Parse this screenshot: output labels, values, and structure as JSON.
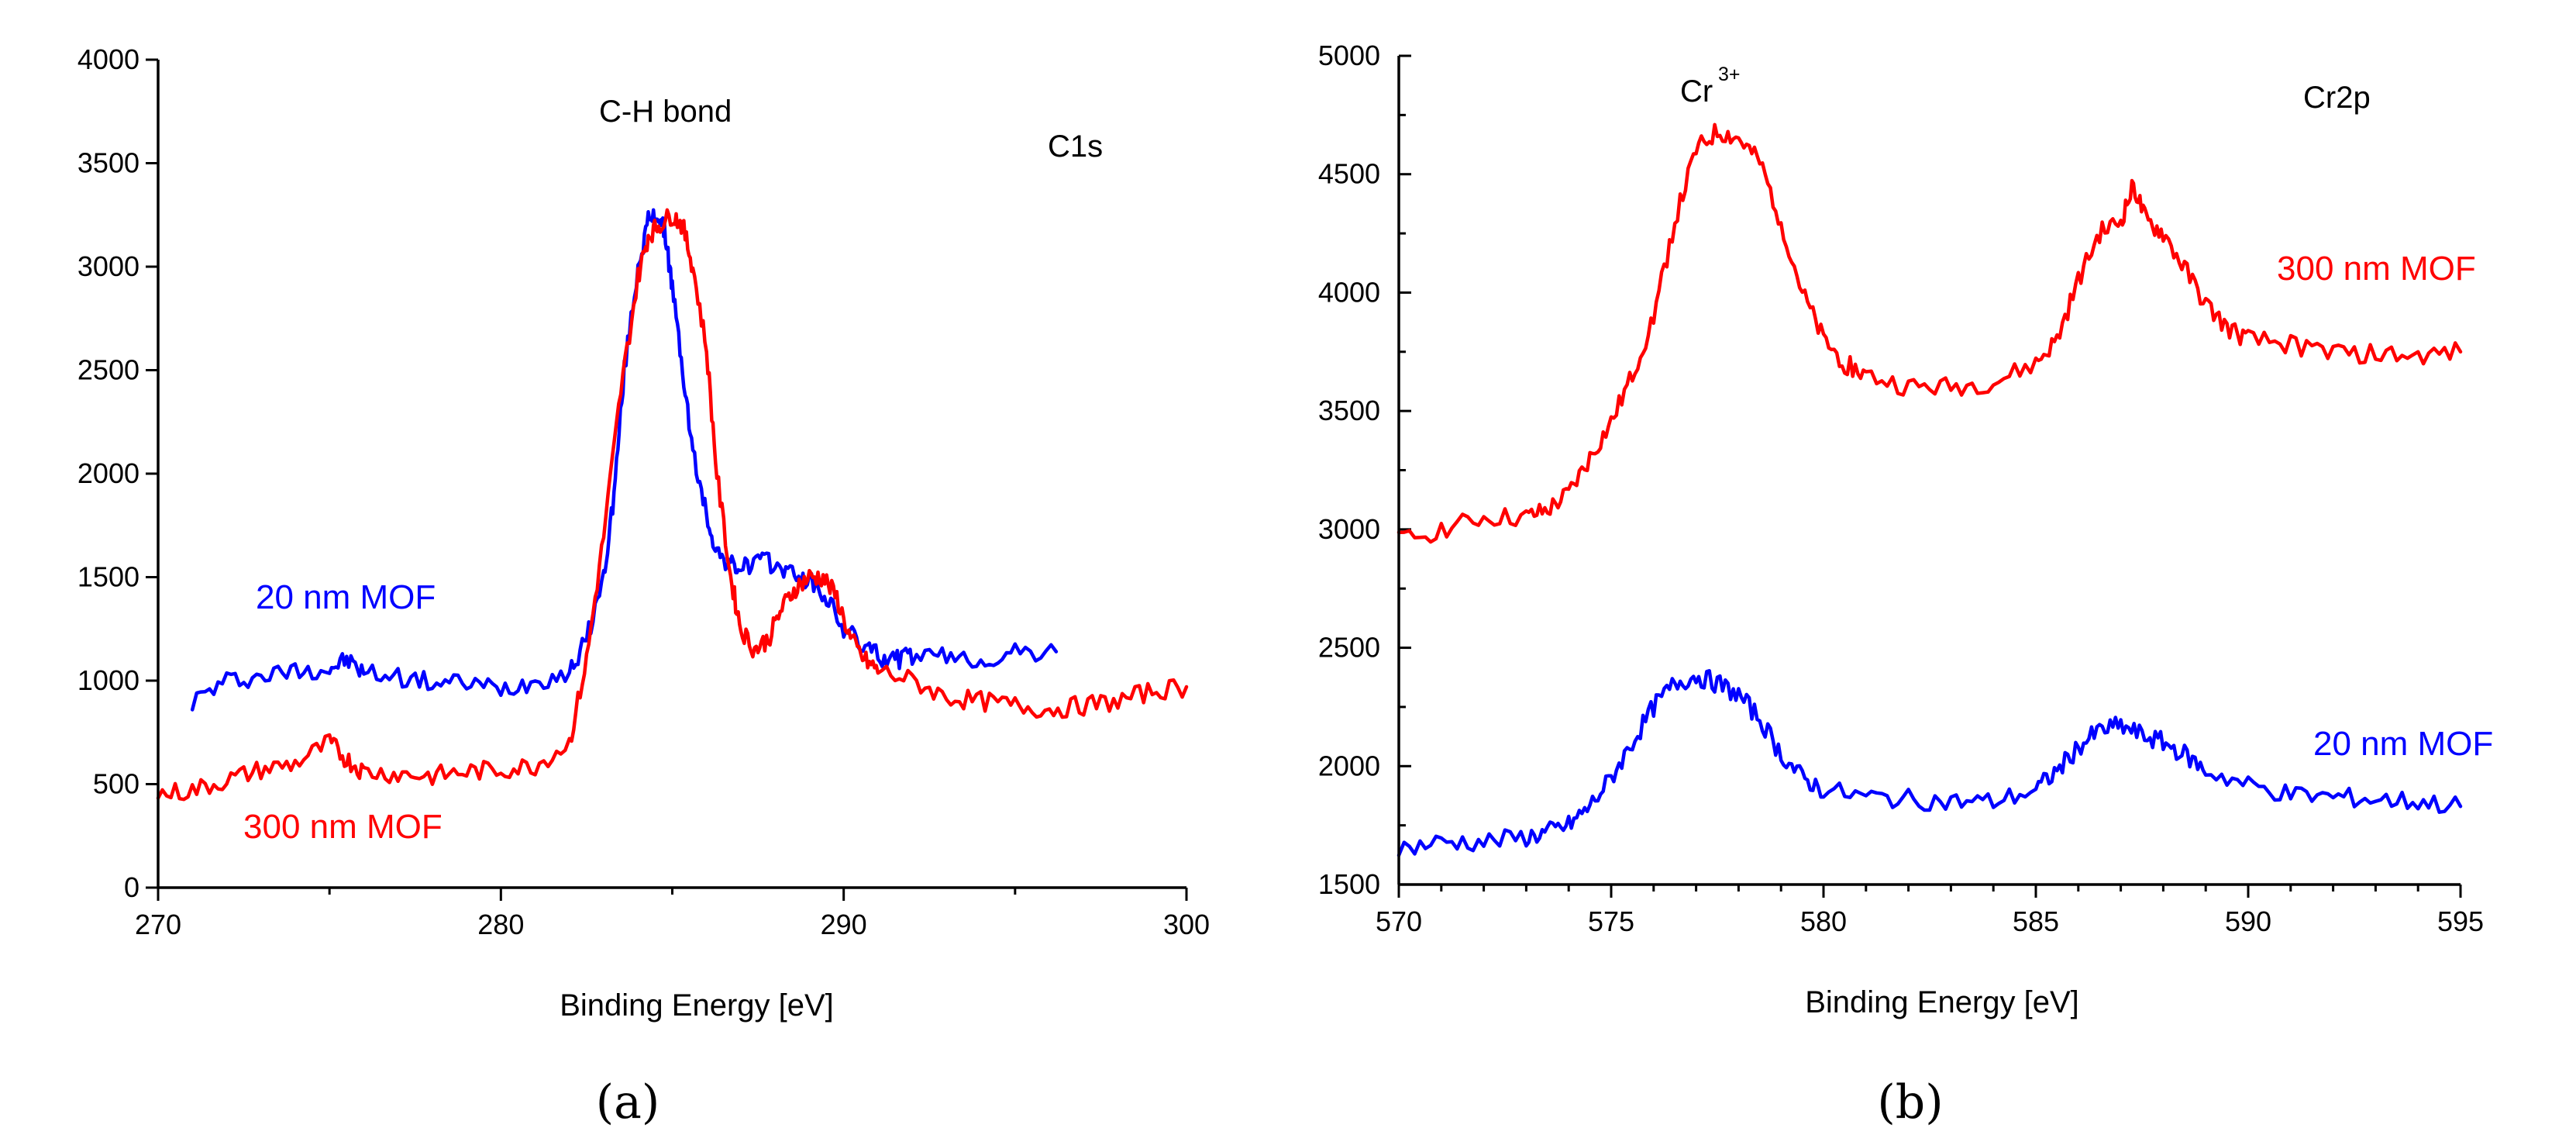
{
  "chart_data": [
    {
      "panel": "a",
      "type": "line",
      "title": "",
      "xlabel": "Binding Energy [eV]",
      "ylabel": "",
      "xlim": [
        270,
        300
      ],
      "ylim": [
        0,
        4000
      ],
      "xticks": [
        270,
        280,
        290,
        300
      ],
      "yticks": [
        0,
        500,
        1000,
        1500,
        2000,
        2500,
        3000,
        3500,
        4000
      ],
      "grid": false,
      "annotations": {
        "peak_label": "C-H bond",
        "region_label": "C1s"
      },
      "series": [
        {
          "name": "20 nm MOF",
          "color": "#0000ff",
          "x": [
            271,
            272,
            273,
            274,
            275,
            275.5,
            276,
            277,
            278,
            279,
            280,
            281,
            282,
            282.5,
            283,
            283.3,
            283.6,
            284,
            284.3,
            284.6,
            284.8,
            285,
            285.3,
            285.6,
            286,
            286.3,
            286.7,
            287,
            287.5,
            288,
            288.5,
            289,
            289.5,
            290,
            290.5,
            291,
            291.5,
            292,
            293,
            294,
            295,
            296.2
          ],
          "values": [
            900,
            1000,
            1020,
            1050,
            1060,
            1100,
            1040,
            1020,
            990,
            990,
            960,
            1000,
            1040,
            1200,
            1500,
            1900,
            2500,
            3000,
            3220,
            3250,
            3150,
            2900,
            2500,
            2100,
            1800,
            1620,
            1560,
            1540,
            1580,
            1560,
            1520,
            1480,
            1400,
            1250,
            1180,
            1120,
            1100,
            1120,
            1110,
            1100,
            1130,
            1140
          ]
        },
        {
          "name": "300 nm MOF",
          "color": "#ff0000",
          "x": [
            270,
            271,
            272,
            273,
            274,
            275,
            275.5,
            276,
            277,
            278,
            279,
            280,
            281,
            282,
            282.5,
            283,
            283.5,
            284,
            284.3,
            284.6,
            285,
            285.3,
            285.6,
            286,
            286.3,
            286.7,
            287,
            287.4,
            287.8,
            288.2,
            288.6,
            289,
            289.4,
            289.8,
            290.2,
            290.6,
            291,
            292,
            293,
            294,
            295,
            296,
            297,
            298,
            299,
            300
          ],
          "values": [
            450,
            470,
            520,
            570,
            600,
            700,
            620,
            560,
            550,
            540,
            560,
            570,
            590,
            700,
            1100,
            1700,
            2400,
            2950,
            3150,
            3200,
            3250,
            3200,
            3000,
            2600,
            2000,
            1500,
            1250,
            1150,
            1200,
            1350,
            1450,
            1500,
            1500,
            1400,
            1200,
            1100,
            1050,
            1000,
            920,
            900,
            880,
            860,
            880,
            900,
            950,
            970
          ]
        }
      ]
    },
    {
      "panel": "b",
      "type": "line",
      "title": "",
      "xlabel": "Binding Energy [eV]",
      "ylabel": "",
      "xlim": [
        570,
        595
      ],
      "ylim": [
        1500,
        5000
      ],
      "xticks": [
        570,
        575,
        580,
        585,
        590,
        595
      ],
      "yticks": [
        1500,
        2000,
        2500,
        3000,
        3500,
        4000,
        4500,
        5000
      ],
      "grid": false,
      "annotations": {
        "peak_label": "Cr",
        "peak_label_superscript": "3+",
        "region_label": "Cr2p"
      },
      "series": [
        {
          "name": "300 nm MOF",
          "color": "#ff0000",
          "x": [
            570,
            571,
            572,
            573,
            573.5,
            574,
            574.5,
            575,
            575.5,
            576,
            576.5,
            577,
            577.5,
            578,
            578.5,
            579,
            579.5,
            580,
            580.5,
            581,
            582,
            583,
            584,
            585,
            585.5,
            586,
            586.5,
            587,
            587.3,
            587.6,
            588,
            588.5,
            589,
            589.5,
            590,
            591,
            592,
            593,
            594,
            595
          ],
          "values": [
            2950,
            3000,
            3050,
            3050,
            3080,
            3150,
            3300,
            3450,
            3650,
            3900,
            4300,
            4600,
            4680,
            4650,
            4550,
            4300,
            4000,
            3800,
            3700,
            3650,
            3600,
            3600,
            3620,
            3700,
            3800,
            4050,
            4250,
            4300,
            4450,
            4300,
            4250,
            4100,
            3950,
            3850,
            3800,
            3780,
            3750,
            3740,
            3730,
            3750
          ]
        },
        {
          "name": "20 nm MOF",
          "color": "#0000ff",
          "x": [
            570,
            571,
            572,
            573,
            573.5,
            574,
            574.5,
            575,
            575.5,
            576,
            576.5,
            577,
            577.5,
            578,
            578.5,
            579,
            579.5,
            580,
            581,
            582,
            583,
            584,
            585,
            585.5,
            586,
            586.5,
            587,
            587.5,
            588,
            588.5,
            589,
            590,
            591,
            592,
            593,
            594,
            595
          ],
          "values": [
            1650,
            1680,
            1680,
            1700,
            1720,
            1750,
            1830,
            1950,
            2100,
            2250,
            2350,
            2380,
            2350,
            2300,
            2200,
            2050,
            1950,
            1900,
            1870,
            1860,
            1850,
            1850,
            1900,
            1980,
            2080,
            2150,
            2170,
            2130,
            2100,
            2050,
            1980,
            1920,
            1880,
            1870,
            1860,
            1850,
            1830
          ]
        }
      ]
    }
  ],
  "labels": {
    "panel_a": "(a)",
    "panel_b": "(b)"
  }
}
